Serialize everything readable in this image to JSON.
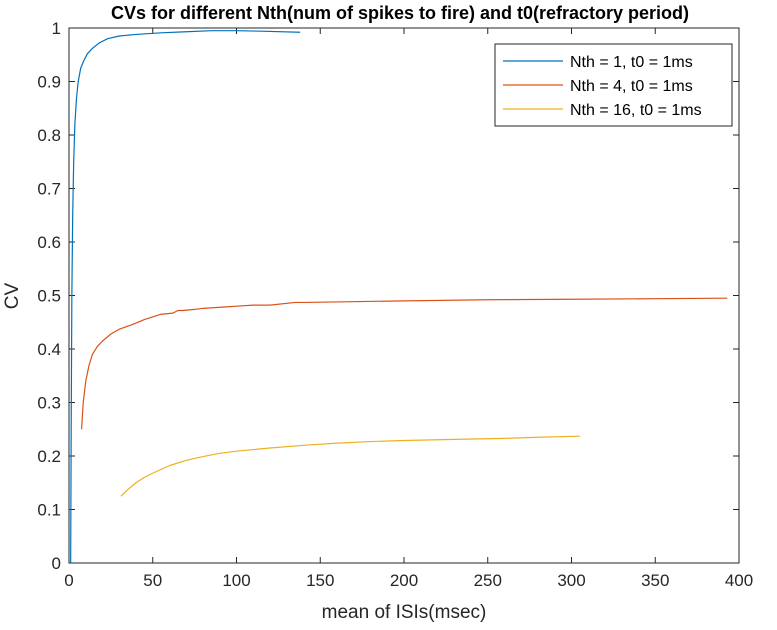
{
  "chart_data": {
    "type": "line",
    "title": "CVs for different Nth(num of spikes to fire) and t0(refractory period)",
    "xlabel": "mean of ISIs(msec)",
    "ylabel": "CV",
    "xlim": [
      0,
      400
    ],
    "ylim": [
      0,
      1
    ],
    "xticks": [
      0,
      50,
      100,
      150,
      200,
      250,
      300,
      350,
      400
    ],
    "yticks": [
      0,
      0.1,
      0.2,
      0.3,
      0.4,
      0.5,
      0.6,
      0.7,
      0.8,
      0.9,
      1
    ],
    "grid": false,
    "legend_position": "top-right",
    "series": [
      {
        "name": "Nth = 1, t0 = 1ms",
        "color": "#0072BD",
        "x": [
          1,
          1.3,
          1.7,
          2.2,
          2.8,
          3.5,
          4.5,
          5.5,
          7,
          9,
          11,
          14,
          18,
          23,
          30,
          40,
          55,
          70,
          85,
          100,
          115,
          138
        ],
        "y": [
          0.0,
          0.25,
          0.5,
          0.65,
          0.75,
          0.82,
          0.87,
          0.9,
          0.925,
          0.94,
          0.952,
          0.962,
          0.972,
          0.98,
          0.985,
          0.988,
          0.991,
          0.993,
          0.995,
          0.995,
          0.994,
          0.992
        ]
      },
      {
        "name": "Nth = 4, t0 = 1ms",
        "color": "#D95319",
        "x": [
          7.5,
          8.5,
          10,
          12,
          14,
          17,
          20,
          25,
          30,
          38,
          45,
          55,
          62,
          65,
          68,
          75,
          80,
          95,
          100,
          110,
          120,
          135,
          140,
          160,
          200,
          250,
          300,
          350,
          393
        ],
        "y": [
          0.25,
          0.3,
          0.34,
          0.37,
          0.39,
          0.405,
          0.415,
          0.428,
          0.437,
          0.446,
          0.455,
          0.465,
          0.467,
          0.472,
          0.472,
          0.474,
          0.476,
          0.479,
          0.48,
          0.482,
          0.482,
          0.487,
          0.487,
          0.488,
          0.49,
          0.492,
          0.493,
          0.494,
          0.495
        ]
      },
      {
        "name": "Nth = 16, t0 = 1ms",
        "color": "#EDB120",
        "x": [
          31,
          35,
          40,
          45,
          50,
          60,
          70,
          80,
          90,
          100,
          120,
          140,
          160,
          180,
          200,
          230,
          260,
          280,
          305
        ],
        "y": [
          0.125,
          0.137,
          0.15,
          0.16,
          0.168,
          0.182,
          0.192,
          0.199,
          0.205,
          0.209,
          0.215,
          0.22,
          0.224,
          0.227,
          0.229,
          0.231,
          0.233,
          0.235,
          0.237
        ]
      }
    ]
  }
}
